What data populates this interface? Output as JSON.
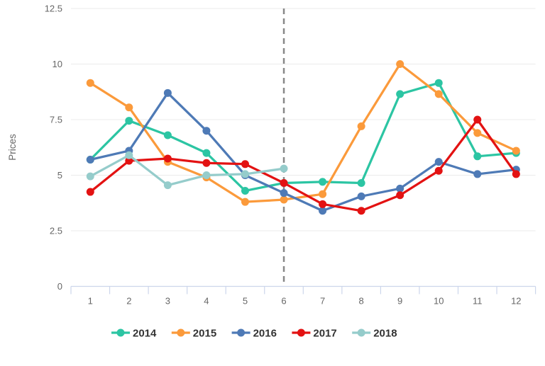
{
  "chart_data": {
    "type": "line",
    "title": "",
    "xlabel": "",
    "ylabel": "Prices",
    "categories": [
      1,
      2,
      3,
      4,
      5,
      6,
      7,
      8,
      9,
      10,
      11,
      12
    ],
    "series": [
      {
        "name": "2014",
        "color": "#2cc5a3",
        "values": [
          5.7,
          7.45,
          6.8,
          6.0,
          4.3,
          4.65,
          4.7,
          4.65,
          8.65,
          9.15,
          5.85,
          6.0
        ]
      },
      {
        "name": "2015",
        "color": "#fb9a3b",
        "values": [
          9.15,
          8.05,
          5.6,
          4.9,
          3.8,
          3.9,
          4.15,
          7.2,
          10.0,
          8.65,
          6.9,
          6.1
        ]
      },
      {
        "name": "2016",
        "color": "#4e7ab6",
        "values": [
          5.7,
          6.1,
          8.7,
          7.0,
          5.0,
          4.2,
          3.4,
          4.05,
          4.4,
          5.6,
          5.05,
          5.25
        ]
      },
      {
        "name": "2017",
        "color": "#e31212",
        "values": [
          4.25,
          5.65,
          5.75,
          5.55,
          5.5,
          4.65,
          3.7,
          3.4,
          4.1,
          5.2,
          7.5,
          5.05
        ]
      },
      {
        "name": "2018",
        "color": "#95cccb",
        "values": [
          4.95,
          5.9,
          4.55,
          5.0,
          5.05,
          5.3
        ]
      }
    ],
    "ylim": [
      0,
      12.5
    ],
    "yticks": [
      0,
      2.5,
      5,
      7.5,
      10,
      12.5
    ],
    "grid": true,
    "legend_position": "bottom",
    "annotations": [
      {
        "type": "vline",
        "x": 6,
        "style": "dashed",
        "color": "#888888"
      }
    ],
    "colors": {
      "gridline": "#ebebeb",
      "x_axis_line": "#ccd6eb",
      "tick_label": "#666666",
      "legend_label": "#333333",
      "vline": "#888888",
      "background": "#ffffff"
    }
  }
}
